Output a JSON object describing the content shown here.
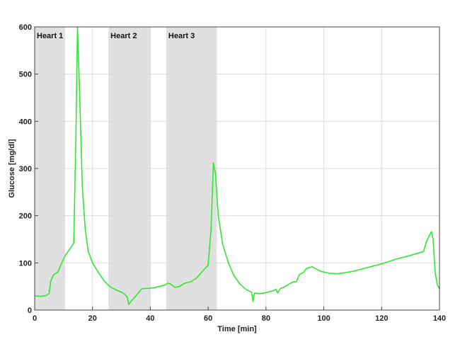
{
  "chart_data": {
    "type": "line",
    "title": "",
    "xlabel": "Time [min]",
    "ylabel": "Glucose [mg/dl]",
    "xlim": [
      0,
      140
    ],
    "ylim": [
      0,
      600
    ],
    "xticks": [
      0,
      20,
      40,
      60,
      80,
      100,
      120,
      140
    ],
    "yticks": [
      0,
      100,
      200,
      300,
      400,
      500,
      600
    ],
    "grid": true,
    "colors": {
      "line": "#33e633",
      "shade": "#e0e0e0",
      "grid": "#dcdcdc",
      "axis": "#444444"
    },
    "shaded_regions": [
      {
        "label": "Heart 1",
        "x_start": 0,
        "x_end": 10.5
      },
      {
        "label": "Heart 2",
        "x_start": 25.5,
        "x_end": 40
      },
      {
        "label": "Heart 3",
        "x_start": 45.5,
        "x_end": 63
      }
    ],
    "series": [
      {
        "points": [
          [
            0,
            30
          ],
          [
            2,
            29
          ],
          [
            4,
            31
          ],
          [
            5,
            35
          ],
          [
            5.5,
            60
          ],
          [
            6.5,
            75
          ],
          [
            8,
            80
          ],
          [
            9,
            95
          ],
          [
            10.5,
            115
          ],
          [
            12,
            128
          ],
          [
            13.5,
            142
          ],
          [
            14.3,
            380
          ],
          [
            14.8,
            600
          ],
          [
            15.5,
            470
          ],
          [
            16.5,
            260
          ],
          [
            17.5,
            170
          ],
          [
            18.5,
            125
          ],
          [
            20,
            100
          ],
          [
            22,
            80
          ],
          [
            24,
            62
          ],
          [
            26,
            50
          ],
          [
            28,
            43
          ],
          [
            30,
            38
          ],
          [
            31,
            34
          ],
          [
            32,
            28
          ],
          [
            32.5,
            12
          ],
          [
            33.5,
            20
          ],
          [
            35,
            30
          ],
          [
            37,
            45
          ],
          [
            39,
            46
          ],
          [
            41,
            47
          ],
          [
            43,
            50
          ],
          [
            45,
            53
          ],
          [
            46,
            57
          ],
          [
            47,
            55
          ],
          [
            48.5,
            48
          ],
          [
            50,
            50
          ],
          [
            52,
            57
          ],
          [
            54,
            60
          ],
          [
            56,
            68
          ],
          [
            58,
            82
          ],
          [
            60,
            95
          ],
          [
            61,
            170
          ],
          [
            61.8,
            312
          ],
          [
            62.5,
            290
          ],
          [
            63.5,
            200
          ],
          [
            65,
            140
          ],
          [
            67,
            100
          ],
          [
            69,
            72
          ],
          [
            71,
            55
          ],
          [
            73,
            44
          ],
          [
            75,
            38
          ],
          [
            75.5,
            18
          ],
          [
            76,
            36
          ],
          [
            78,
            35
          ],
          [
            80,
            37
          ],
          [
            82,
            40
          ],
          [
            83.5,
            44
          ],
          [
            84,
            36
          ],
          [
            85,
            46
          ],
          [
            86,
            48
          ],
          [
            88,
            55
          ],
          [
            89.5,
            60
          ],
          [
            90.5,
            60
          ],
          [
            91.5,
            75
          ],
          [
            93,
            80
          ],
          [
            94,
            88
          ],
          [
            96,
            92
          ],
          [
            97,
            88
          ],
          [
            99,
            82
          ],
          [
            102,
            78
          ],
          [
            105,
            77
          ],
          [
            110,
            82
          ],
          [
            115,
            90
          ],
          [
            120,
            98
          ],
          [
            125,
            108
          ],
          [
            130,
            116
          ],
          [
            134.5,
            124
          ],
          [
            135.5,
            145
          ],
          [
            136.5,
            158
          ],
          [
            137.2,
            166
          ],
          [
            137.8,
            150
          ],
          [
            138.5,
            80
          ],
          [
            139.2,
            55
          ],
          [
            140,
            45
          ]
        ]
      }
    ]
  }
}
